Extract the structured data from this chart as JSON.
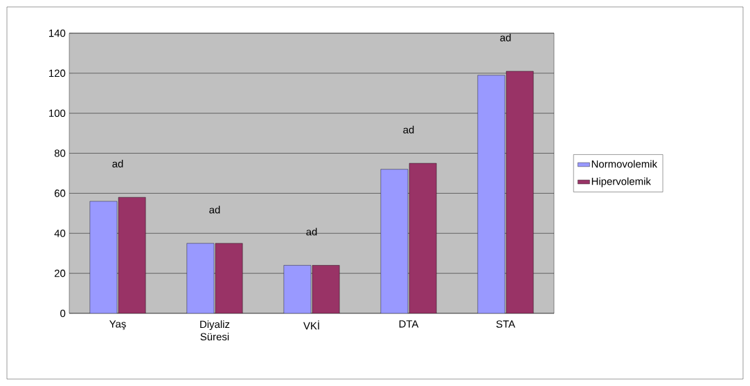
{
  "chart_data": {
    "type": "bar",
    "categories": [
      "Yaş",
      "Diyaliz Süresi",
      "VKİ",
      "DTA",
      "STA"
    ],
    "series": [
      {
        "name": "Normovolemik",
        "color": "#9999ff",
        "values": [
          56,
          35,
          24,
          72,
          119
        ]
      },
      {
        "name": "Hipervolemik",
        "color": "#993366",
        "values": [
          58,
          35,
          24,
          75,
          121
        ]
      }
    ],
    "ylim": [
      0,
      140
    ],
    "yticks": [
      0,
      20,
      40,
      60,
      80,
      100,
      120,
      140
    ],
    "grid": "y",
    "legend": "right",
    "annotations": [
      "ad",
      "ad",
      "ad",
      "ad",
      "ad"
    ]
  }
}
